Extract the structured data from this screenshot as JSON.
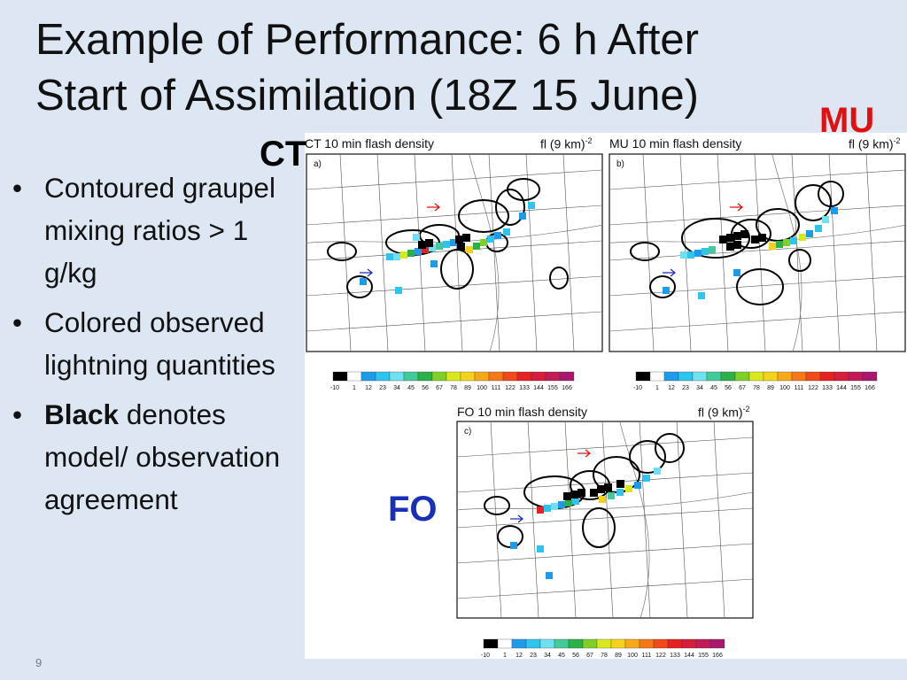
{
  "slide": {
    "title_line1": "Example of Performance: 6 h After",
    "title_line2": "Start of Assimilation (18Z 15 June)",
    "page_number": "9"
  },
  "bullets": [
    {
      "bold": "",
      "text": "Contoured graupel mixing ratios > 1 g/kg"
    },
    {
      "bold": "",
      "text": "Colored observed lightning quantities"
    },
    {
      "bold": "Black",
      "text": " denotes model/ observation agreement"
    }
  ],
  "labels": {
    "ct": "CT",
    "mu": "MU",
    "fo": "FO"
  },
  "colors": {
    "mu": "#e01010",
    "fo": "#1a2fb8",
    "arrow_red": "#e01010",
    "arrow_blue": "#1a2fb8"
  },
  "panels": [
    {
      "title": "CT 10 min flash density",
      "unit": "fl (9 km)",
      "unit_sup": "-2",
      "tag": "a)"
    },
    {
      "title": "MU 10 min flash density",
      "unit": "fl (9 km)",
      "unit_sup": "-2",
      "tag": "b)"
    },
    {
      "title": "FO 10 min flash density",
      "unit": "fl (9 km)",
      "unit_sup": "-2",
      "tag": "c)"
    }
  ],
  "colorbar": {
    "ticks": [
      "-10",
      "1",
      "12",
      "23",
      "34",
      "45",
      "56",
      "67",
      "78",
      "89",
      "100",
      "111",
      "122",
      "133",
      "144",
      "155",
      "166"
    ],
    "colors": [
      "#000000",
      "#ffffff",
      "#1e9be8",
      "#2ec4ee",
      "#6fe0f0",
      "#43c99a",
      "#2bb04a",
      "#7fcf2a",
      "#d9e81e",
      "#f2d21a",
      "#f5a81a",
      "#f2781a",
      "#ee4a1a",
      "#e52222",
      "#d41e3c",
      "#c01c56",
      "#a8186e"
    ]
  }
}
